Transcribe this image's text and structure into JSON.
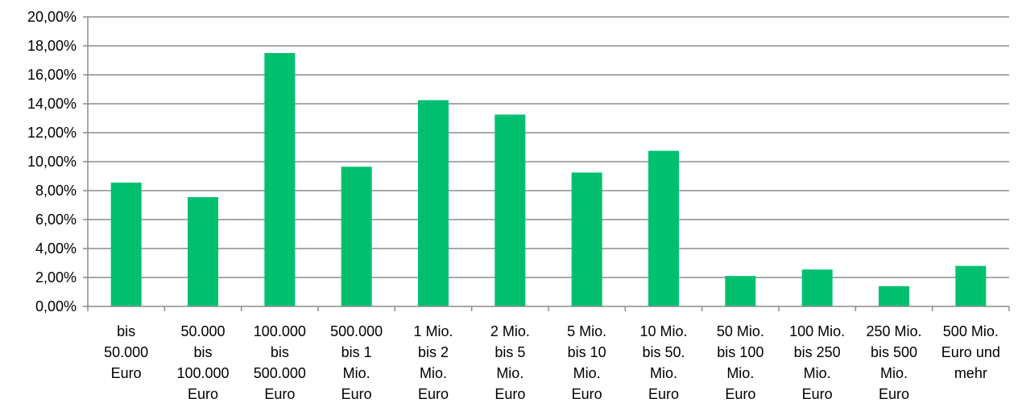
{
  "chart_data": {
    "type": "bar",
    "title": "",
    "xlabel": "",
    "ylabel": "",
    "ylim": [
      0,
      20
    ],
    "yticks": [
      "0,00%",
      "2,00%",
      "4,00%",
      "6,00%",
      "8,00%",
      "10,00%",
      "12,00%",
      "14,00%",
      "16,00%",
      "18,00%",
      "20,00%"
    ],
    "grid": true,
    "legend": "none",
    "bar_color": "#00c070",
    "categories": [
      [
        "bis",
        "50.000",
        "Euro"
      ],
      [
        "50.000",
        "bis",
        "100.000",
        "Euro"
      ],
      [
        "100.000",
        "bis",
        "500.000",
        "Euro"
      ],
      [
        "500.000",
        "bis 1",
        "Mio.",
        "Euro"
      ],
      [
        "1 Mio.",
        "bis 2",
        "Mio.",
        "Euro"
      ],
      [
        "2 Mio.",
        "bis 5",
        "Mio.",
        "Euro"
      ],
      [
        "5 Mio.",
        "bis 10",
        "Mio.",
        "Euro"
      ],
      [
        "10 Mio.",
        "bis 50.",
        "Mio.",
        "Euro"
      ],
      [
        "50 Mio.",
        "bis 100",
        "Mio.",
        "Euro"
      ],
      [
        "100 Mio.",
        "bis 250",
        "Mio.",
        "Euro"
      ],
      [
        "250 Mio.",
        "bis 500",
        "Mio.",
        "Euro"
      ],
      [
        "500 Mio.",
        "Euro und",
        "mehr"
      ]
    ],
    "values": [
      8.55,
      7.55,
      17.5,
      9.65,
      14.25,
      13.25,
      9.25,
      10.75,
      2.1,
      2.55,
      1.4,
      2.8
    ]
  }
}
